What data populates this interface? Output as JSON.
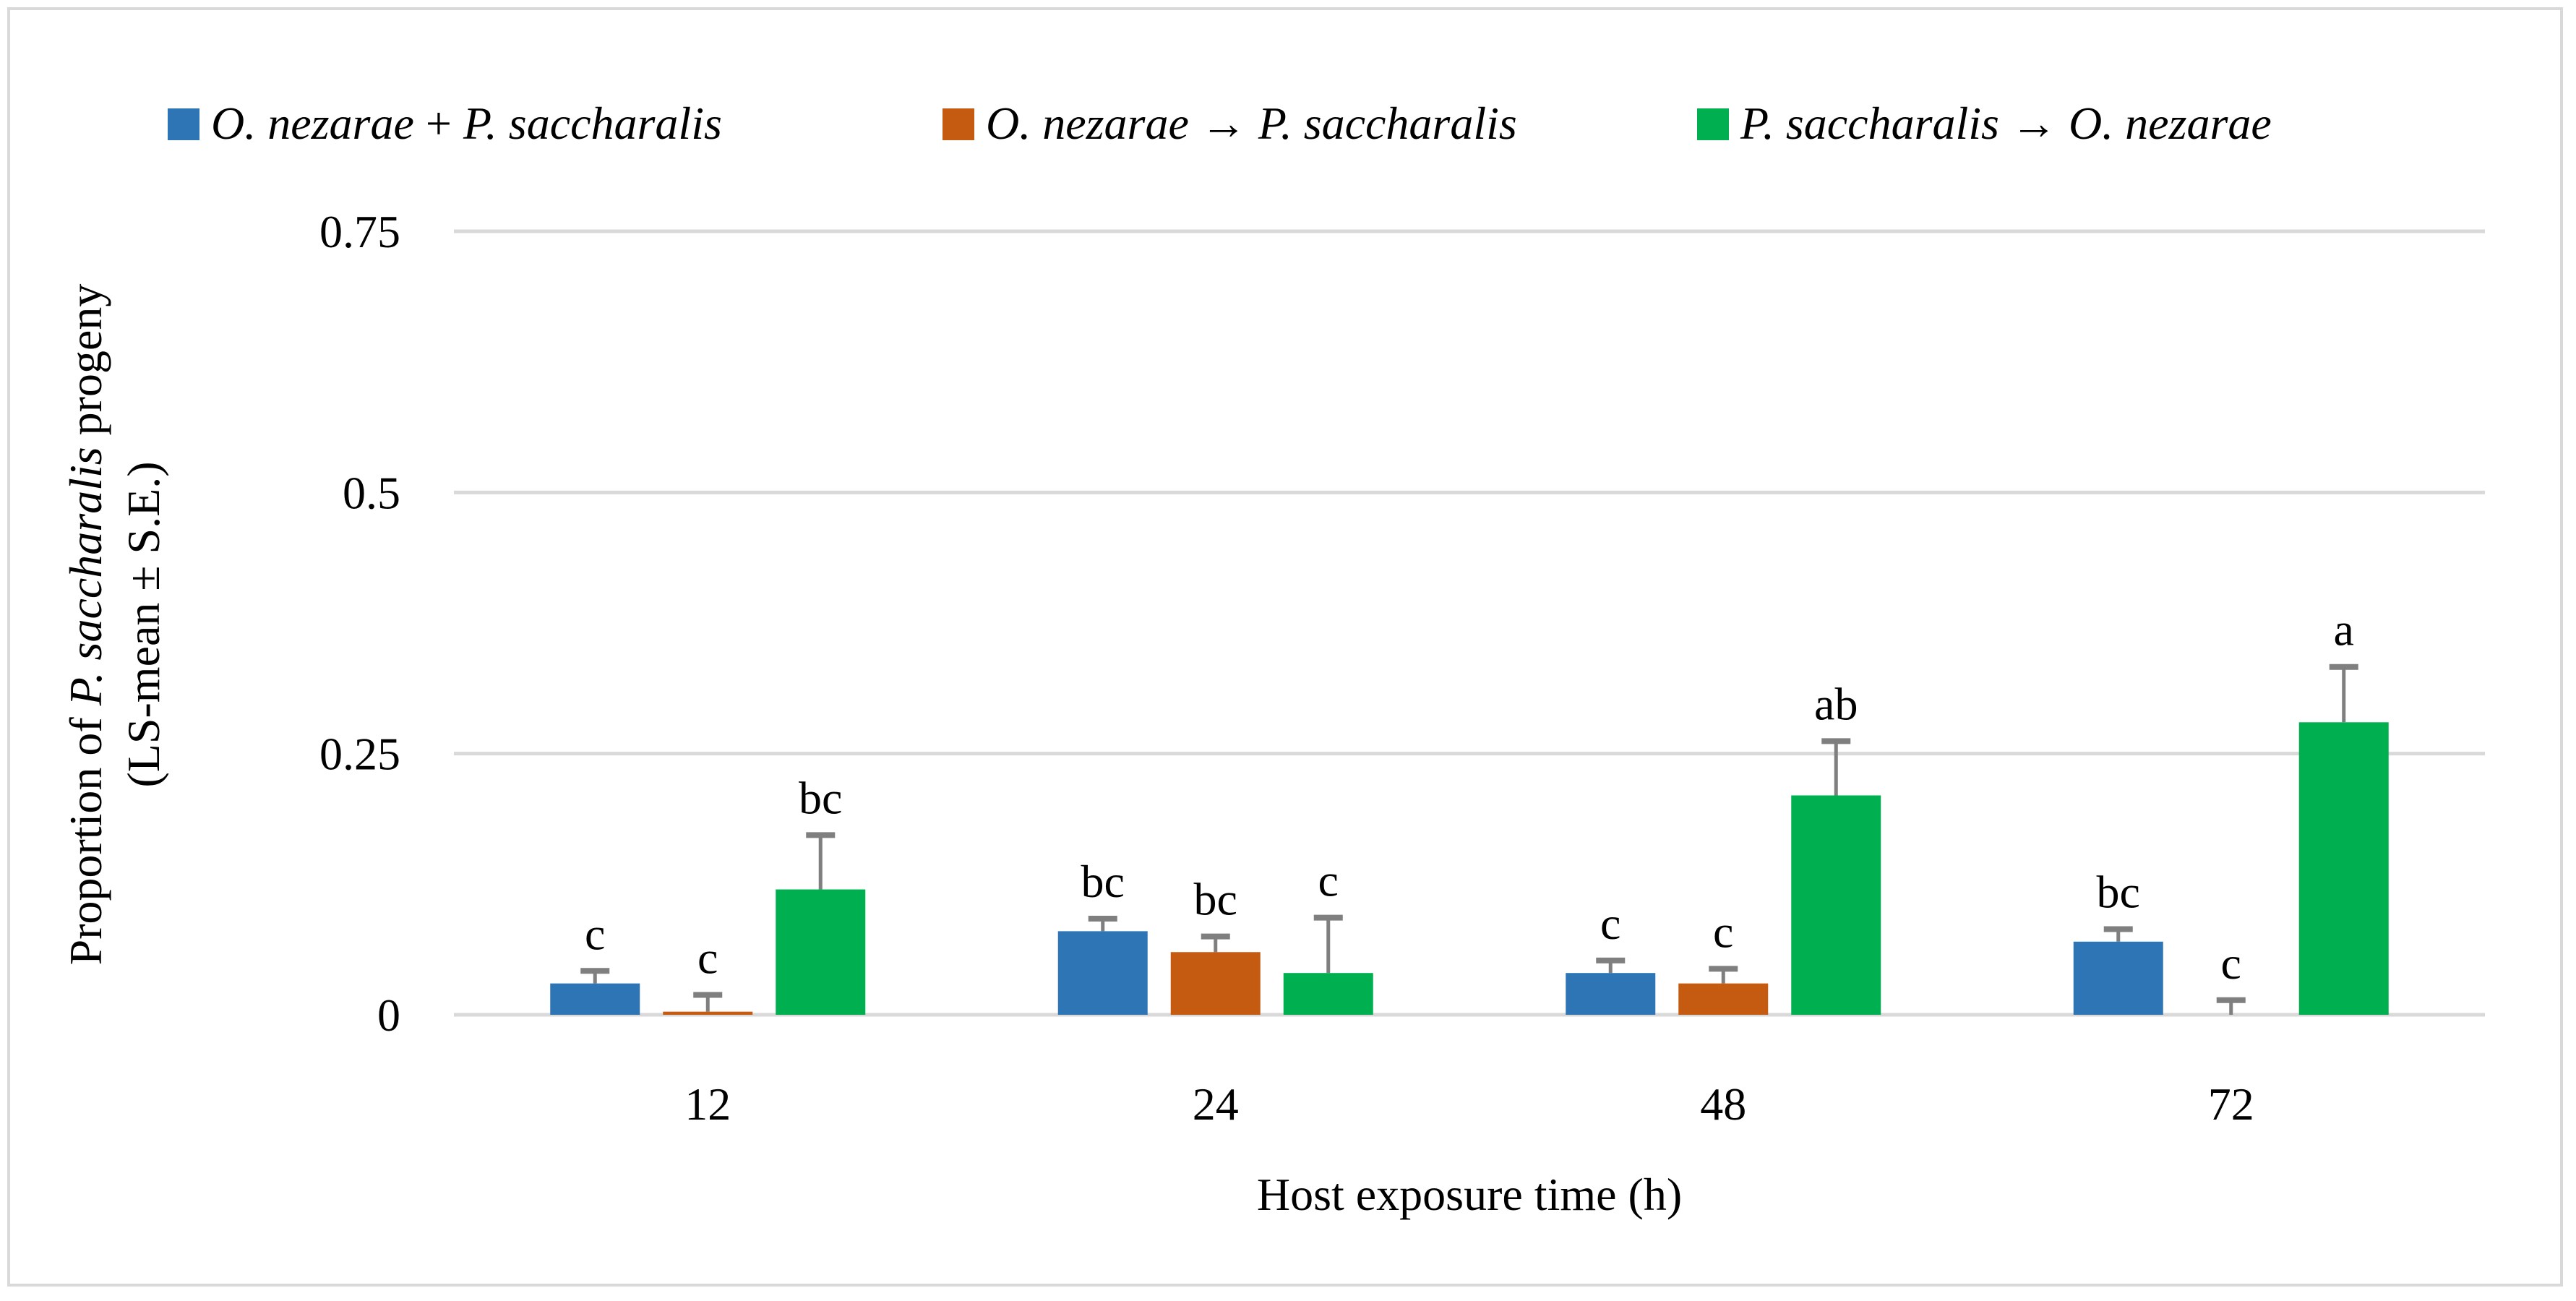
{
  "chart_data": {
    "type": "bar",
    "title": "",
    "xlabel": "Host exposure time (h)",
    "ylabel_parts": {
      "line1_pre": "Proportion of ",
      "line1_italic": "P. saccharalis",
      "line1_post": " progeny",
      "line2": "(LS-mean ± S.E.)"
    },
    "categories": [
      "12",
      "24",
      "48",
      "72"
    ],
    "ylim": [
      0,
      0.75
    ],
    "yticks": [
      0,
      0.25,
      0.5,
      0.75
    ],
    "ytick_labels": [
      "0",
      "0.25",
      "0.5",
      "0.75"
    ],
    "grid": true,
    "legend_position": "top",
    "legend": [
      {
        "pre": "O. nezarae",
        "mid": " + ",
        "post": "P. saccharalis"
      },
      {
        "pre": "O. nezarae",
        "mid": " → ",
        "post": "P. saccharalis"
      },
      {
        "pre": "P. saccharalis",
        "mid": "  → ",
        "post": "O. nezarae"
      }
    ],
    "series": [
      {
        "name": "O. nezarae + P. saccharalis",
        "color": "#2e75b6",
        "values": [
          0.03,
          0.08,
          0.04,
          0.07
        ],
        "errors": [
          0.012,
          0.012,
          0.012,
          0.012
        ],
        "letters": [
          "c",
          "bc",
          "c",
          "bc"
        ]
      },
      {
        "name": "O. nezarae → P. saccharalis",
        "color": "#c55a11",
        "values": [
          0.003,
          0.06,
          0.03,
          0.0
        ],
        "errors": [
          0.016,
          0.015,
          0.014,
          0.014
        ],
        "letters": [
          "c",
          "bc",
          "c",
          "c"
        ]
      },
      {
        "name": "P. saccharalis → O. nezarae",
        "color": "#00b050",
        "values": [
          0.12,
          0.04,
          0.21,
          0.28
        ],
        "errors": [
          0.052,
          0.053,
          0.052,
          0.053
        ],
        "letters": [
          "bc",
          "c",
          "ab",
          "a"
        ]
      }
    ],
    "colors": {
      "gridline": "#d9d9d9",
      "errorbar": "#7f7f7f",
      "frame": "#d9d9d9"
    }
  }
}
